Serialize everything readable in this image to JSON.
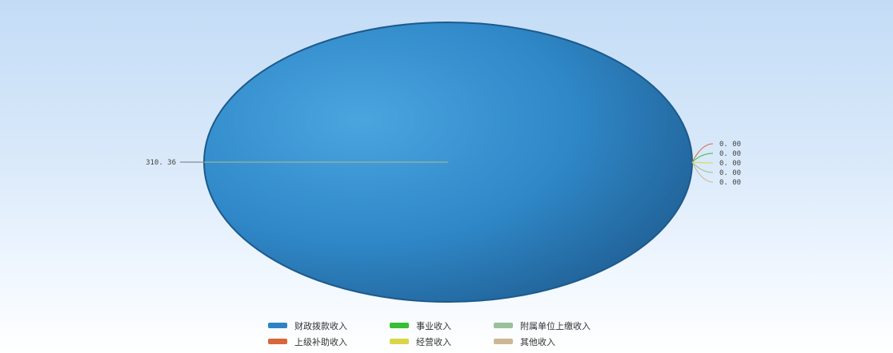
{
  "chart_data": {
    "type": "pie",
    "title": "",
    "series": [
      {
        "name": "财政拨款收入",
        "value": 310.36,
        "label": "310. 36",
        "color": "#2f83c4"
      },
      {
        "name": "上级补助收入",
        "value": 0.0,
        "label": "0. 00",
        "color": "#d9663c"
      },
      {
        "name": "事业收入",
        "value": 0.0,
        "label": "0. 00",
        "color": "#35c034"
      },
      {
        "name": "经营收入",
        "value": 0.0,
        "label": "0. 00",
        "color": "#d8d64a"
      },
      {
        "name": "附属单位上缴收入",
        "value": 0.0,
        "label": "0. 00",
        "color": "#99c29a"
      },
      {
        "name": "其他收入",
        "value": 0.0,
        "label": "0. 00",
        "color": "#cdb896"
      }
    ],
    "legend_position": "bottom"
  }
}
